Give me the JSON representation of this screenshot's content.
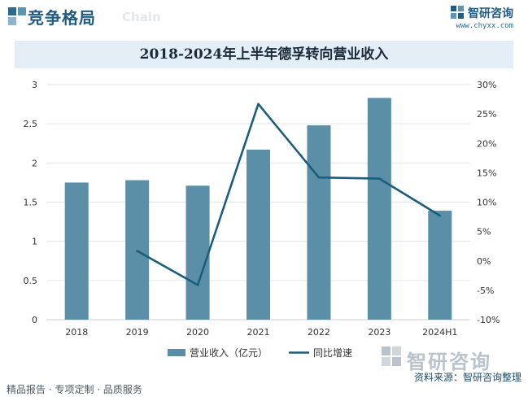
{
  "header": {
    "section_title": "竞争格局",
    "section_sub": "Chain",
    "brand_name": "智研咨询",
    "brand_url": "www.chyxx.com"
  },
  "chart_data": {
    "type": "bar",
    "title": "2018-2024年上半年德孚转向营业收入",
    "categories": [
      "2018",
      "2019",
      "2020",
      "2021",
      "2022",
      "2023",
      "2024H1"
    ],
    "series": [
      {
        "name": "营业收入（亿元）",
        "type": "bar",
        "axis": "left",
        "values": [
          1.75,
          1.78,
          1.71,
          2.17,
          2.48,
          2.83,
          1.39
        ]
      },
      {
        "name": "同比增速",
        "type": "line",
        "axis": "right",
        "values": [
          null,
          1.7,
          -4.1,
          26.7,
          14.2,
          14.0,
          7.7
        ]
      }
    ],
    "y_left": {
      "min": 0,
      "max": 3,
      "ticks": [
        "0",
        "0.5",
        "1",
        "1.5",
        "2",
        "2.5",
        "3"
      ]
    },
    "y_right": {
      "min": -10,
      "max": 30,
      "ticks": [
        "-10%",
        "-5%",
        "0%",
        "5%",
        "10%",
        "15%",
        "20%",
        "25%",
        "30%"
      ]
    },
    "grid": true,
    "legend_position": "bottom",
    "colors": {
      "bar": "#5b8fa8",
      "line": "#1a5e7c"
    }
  },
  "watermark": {
    "brand_name": "智研咨询"
  },
  "footer": {
    "left": "精品报告 · 专项定制 · 品质服务",
    "source": "资料来源：智研咨询整理"
  }
}
